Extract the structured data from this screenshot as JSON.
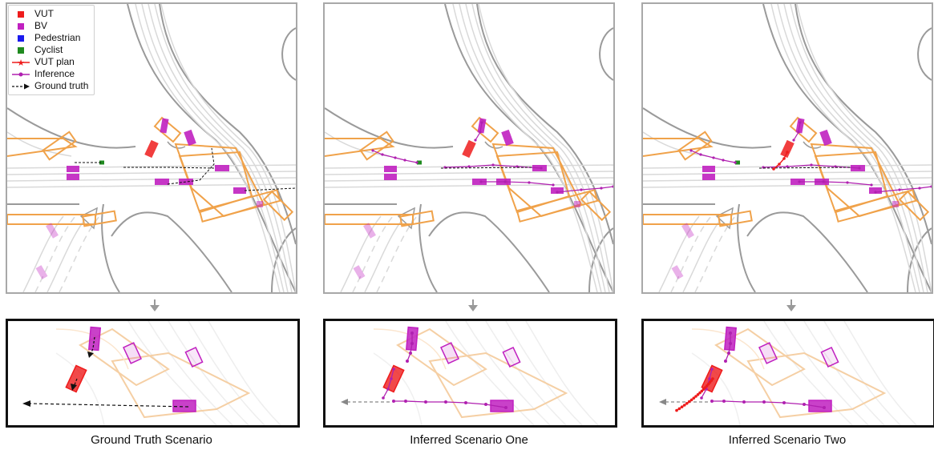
{
  "legend": {
    "items": [
      {
        "label": "VUT",
        "kind": "square",
        "color": "#ee1c1c"
      },
      {
        "label": "BV",
        "kind": "square",
        "color": "#c020c0"
      },
      {
        "label": "Pedestrian",
        "kind": "square",
        "color": "#1a1aee"
      },
      {
        "label": "Cyclist",
        "kind": "square",
        "color": "#1f8a1f"
      },
      {
        "label": "VUT plan",
        "kind": "line-star",
        "color": "#ee1c1c"
      },
      {
        "label": "Inference",
        "kind": "line-dot",
        "color": "#b020b0"
      },
      {
        "label": "Ground truth",
        "kind": "dashed-arrow",
        "color": "#111111"
      }
    ]
  },
  "panels": [
    {
      "id": "gt",
      "caption": "Ground Truth Scenario"
    },
    {
      "id": "inf1",
      "caption": "Inferred Scenario One"
    },
    {
      "id": "inf2",
      "caption": "Inferred Scenario Two"
    }
  ],
  "colors": {
    "road_dark": "#9a9a9a",
    "road_light": "#d9d9d9",
    "lane_outline": "#f0a24a",
    "vut": "#ee1c1c",
    "bv": "#c020c0",
    "inference": "#b020b0",
    "ground_truth": "#111111",
    "cyclist": "#1f8a1f"
  }
}
